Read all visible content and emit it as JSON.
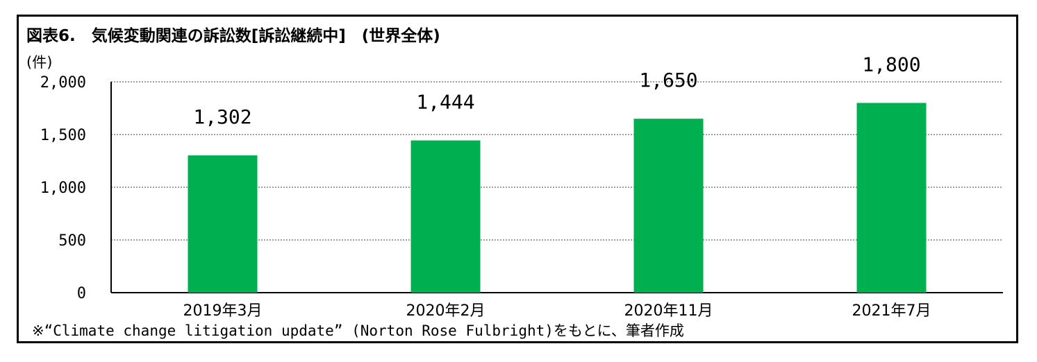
{
  "title": "図表6.　気候変動関連の訴訟数[訴訟継続中]　(世界全体)",
  "unit_label": "(件)",
  "source_note": "※“Climate change litigation update” (Norton Rose Fulbright)をもとに、筆者作成",
  "colors": {
    "bar": "#00b050",
    "grid": "#7f7f7f",
    "axis": "#000000"
  },
  "chart_data": {
    "type": "bar",
    "categories": [
      "2019年3月",
      "2020年2月",
      "2020年11月",
      "2021年7月"
    ],
    "values": [
      1302,
      1444,
      1650,
      1800
    ],
    "data_labels": [
      "1,302",
      "1,444",
      "1,650",
      "1,800"
    ],
    "y_ticks": [
      0,
      500,
      1000,
      1500,
      2000
    ],
    "y_tick_labels": [
      "0",
      "500",
      "1,000",
      "1,500",
      "2,000"
    ],
    "ylim": [
      0,
      2000
    ],
    "grid": true,
    "legend": "none"
  }
}
